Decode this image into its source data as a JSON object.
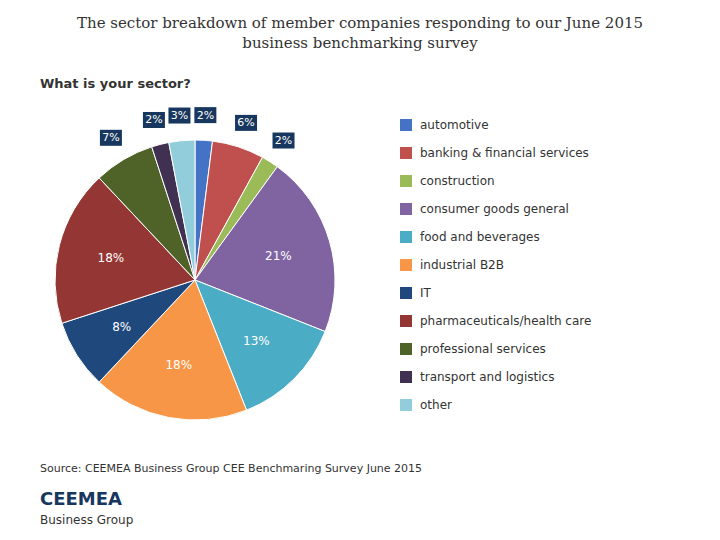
{
  "chart_data": {
    "type": "pie",
    "title": "The sector breakdown of member companies responding to our June 2015\nbusiness benchmarking survey",
    "subtitle": "What is your sector?",
    "categories": [
      "automotive",
      "banking & financial services",
      "construction",
      "consumer goods general",
      "food and beverages",
      "industrial B2B",
      "IT",
      "pharmaceuticals/health care",
      "professional services",
      "transport and logistics",
      "other"
    ],
    "values": [
      2,
      6,
      2,
      21,
      13,
      18,
      8,
      18,
      7,
      2,
      3
    ],
    "value_labels": [
      "2%",
      "6%",
      "2%",
      "21%",
      "13%",
      "18%",
      "8%",
      "18%",
      "7%",
      "2%",
      "3%"
    ],
    "colors": [
      "#4472C4",
      "#C0504D",
      "#9BBB59",
      "#8064A2",
      "#4BACC6",
      "#F79646",
      "#1F497D",
      "#943634",
      "#4F6228",
      "#403152",
      "#92CDDC"
    ],
    "data_labels": true,
    "legend": "right",
    "annotations": [
      "Source: CEEMEA Business Group CEE Benchmaring Survey June 2015",
      "CEEMEA",
      "Business Group"
    ]
  }
}
